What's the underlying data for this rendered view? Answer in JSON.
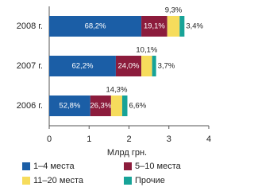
{
  "chart_data": {
    "type": "stacked-bar-horizontal",
    "x_label": "Млрд грн.",
    "categories": [
      "2008 г.",
      "2007 г.",
      "2006 г."
    ],
    "xlim": [
      0,
      4
    ],
    "xticks": [
      0,
      1,
      2,
      3,
      4
    ],
    "legend": "bottom",
    "series": [
      {
        "name": "1–4 места",
        "color": "#1b5ea6",
        "values": [
          2.31,
          1.67,
          1.03
        ],
        "segment_labels": [
          "68,2%",
          "62,2%",
          "52,8%"
        ]
      },
      {
        "name": "5–10 места",
        "color": "#8c1c3c",
        "values": [
          0.65,
          0.64,
          0.52
        ],
        "segment_labels": [
          "19,1%",
          "24,0%",
          "26,3%"
        ]
      },
      {
        "name": "11–20 места",
        "color": "#f6dc5c",
        "values": [
          0.31,
          0.27,
          0.28
        ],
        "segment_labels": [
          "9,3%",
          "10,1%",
          "14,3%"
        ]
      },
      {
        "name": "Прочие",
        "color": "#17a398",
        "values": [
          0.12,
          0.1,
          0.13
        ],
        "segment_labels": [
          "3,4%",
          "3,7%",
          "6,6%"
        ]
      }
    ]
  }
}
